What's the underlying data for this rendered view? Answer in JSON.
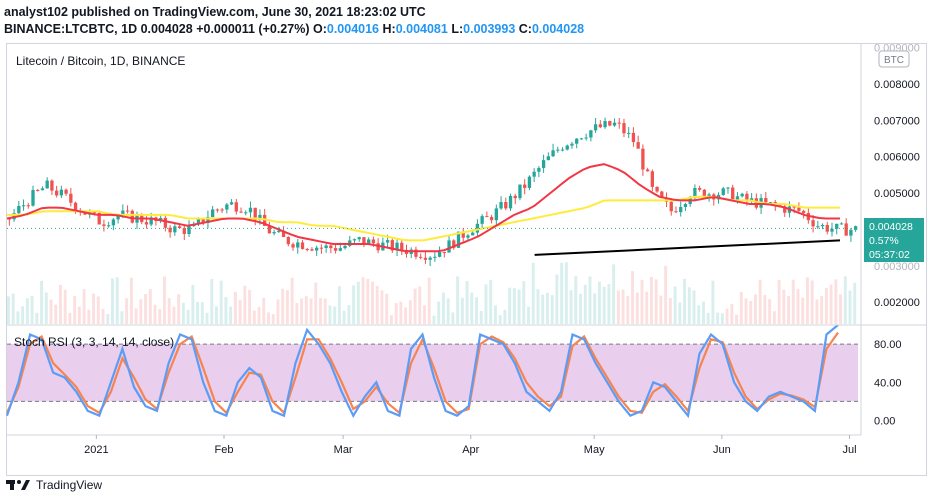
{
  "header": {
    "publisher_line": "analyst102 published on TradingView.com, June 30, 2021 18:23:02 UTC",
    "symbol": "BINANCE:LTCBTC, 1D",
    "last": "0.004028",
    "change": "+0.000011 (+0.27%)",
    "o_label": "O:",
    "o": "0.004016",
    "h_label": "H:",
    "h": "0.004081",
    "l_label": "L:",
    "l": "0.003993",
    "c_label": "C:",
    "c": "0.004028"
  },
  "legend": {
    "main": "Litecoin / Bitcoin, 1D, BINANCE",
    "rsi": "Stoch RSI (3, 3, 14, 14, close)"
  },
  "price_tag": {
    "price": "0.004028",
    "pct": "0.57%",
    "time": "05:37:02"
  },
  "currency_badge": "BTC",
  "footer": {
    "brand": "TradingView"
  },
  "colors": {
    "up": "#26a69a",
    "down": "#ef5350",
    "ma_fast": "#f23645",
    "ma_slow": "#ffeb3b",
    "k": "#5b9cf6",
    "d": "#f7844f",
    "band": "#e1bee7",
    "trend": "#000000"
  },
  "chart_data": [
    {
      "type": "candlestick",
      "title": "Litecoin / Bitcoin, 1D, BINANCE",
      "x_ticks": [
        "2021",
        "Feb",
        "Mar",
        "Apr",
        "May",
        "Jun",
        "Jul"
      ],
      "y_ticks": [
        "0.008000",
        "0.007000",
        "0.006000",
        "0.005000",
        "0.002000"
      ],
      "y_ticks_partial": [
        "0.009000",
        "0.003000"
      ],
      "ylim": [
        0.0014,
        0.0091
      ],
      "close_path": [
        0.0043,
        0.0048,
        0.0052,
        0.0049,
        0.0045,
        0.0042,
        0.0044,
        0.0043,
        0.0042,
        0.004,
        0.004,
        0.0045,
        0.0047,
        0.0046,
        0.004,
        0.0037,
        0.0036,
        0.0035,
        0.0035,
        0.0037,
        0.0036,
        0.0035,
        0.0034,
        0.0033,
        0.0036,
        0.004,
        0.0043,
        0.0047,
        0.0052,
        0.0058,
        0.0063,
        0.0066,
        0.0068,
        0.0069,
        0.0064,
        0.005,
        0.0045,
        0.005,
        0.005,
        0.005,
        0.0048,
        0.0047,
        0.0046,
        0.0045,
        0.0041,
        0.004,
        0.004
      ],
      "ma_fast_path": [
        0.0043,
        0.0044,
        0.0046,
        0.0046,
        0.0045,
        0.0044,
        0.0044,
        0.0043,
        0.0043,
        0.0042,
        0.0041,
        0.0042,
        0.0043,
        0.0043,
        0.0042,
        0.004,
        0.0038,
        0.0037,
        0.0036,
        0.0036,
        0.0036,
        0.0035,
        0.0034,
        0.0034,
        0.0034,
        0.0036,
        0.0038,
        0.0041,
        0.0044,
        0.0046,
        0.005,
        0.0054,
        0.0057,
        0.0058,
        0.0056,
        0.0052,
        0.0049,
        0.0048,
        0.0048,
        0.0049,
        0.0048,
        0.0047,
        0.0047,
        0.0046,
        0.0044,
        0.0043,
        0.0043
      ],
      "ma_slow_path": [
        0.0044,
        0.0044,
        0.0045,
        0.0045,
        0.0045,
        0.0045,
        0.0044,
        0.0044,
        0.0044,
        0.0044,
        0.0043,
        0.0043,
        0.0043,
        0.0043,
        0.0043,
        0.0042,
        0.0042,
        0.0041,
        0.0041,
        0.004,
        0.0039,
        0.0038,
        0.0037,
        0.0037,
        0.0038,
        0.0039,
        0.004,
        0.0041,
        0.0042,
        0.0043,
        0.0044,
        0.0045,
        0.0046,
        0.0048,
        0.0048,
        0.0048,
        0.0048,
        0.0048,
        0.0049,
        0.0049,
        0.0048,
        0.0048,
        0.0047,
        0.0047,
        0.0046,
        0.0046,
        0.0046
      ],
      "trendline": [
        [
          0.62,
          0.0033
        ],
        [
          1.0,
          0.0037
        ]
      ],
      "last_price": 0.004028
    },
    {
      "type": "line",
      "title": "Stoch RSI (3, 3, 14, 14, close)",
      "y_ticks": [
        "80.00",
        "40.00",
        "0.00"
      ],
      "band": [
        20,
        80
      ],
      "ylim": [
        -10,
        100
      ],
      "series": [
        {
          "values": [
            5,
            40,
            90,
            85,
            50,
            45,
            30,
            10,
            5,
            40,
            75,
            35,
            15,
            10,
            60,
            90,
            85,
            40,
            10,
            5,
            40,
            55,
            45,
            10,
            5,
            60,
            95,
            80,
            60,
            30,
            5,
            25,
            40,
            10,
            5,
            75,
            90,
            45,
            10,
            5,
            15,
            90,
            85,
            80,
            60,
            30,
            20,
            10,
            30,
            90,
            85,
            60,
            40,
            20,
            5,
            10,
            40,
            35,
            20,
            5,
            70,
            90,
            80,
            40,
            20,
            10,
            25,
            30,
            25,
            20,
            10,
            90,
            100
          ]
        },
        {
          "values": [
            8,
            35,
            80,
            88,
            60,
            48,
            35,
            15,
            8,
            30,
            65,
            45,
            22,
            12,
            50,
            80,
            88,
            55,
            20,
            8,
            30,
            50,
            48,
            20,
            8,
            45,
            85,
            85,
            65,
            40,
            12,
            20,
            35,
            18,
            8,
            60,
            85,
            55,
            20,
            8,
            12,
            80,
            88,
            82,
            65,
            40,
            25,
            15,
            25,
            78,
            88,
            65,
            45,
            25,
            10,
            8,
            30,
            38,
            25,
            10,
            55,
            85,
            82,
            50,
            25,
            12,
            22,
            28,
            26,
            22,
            14,
            75,
            92
          ]
        }
      ]
    }
  ]
}
